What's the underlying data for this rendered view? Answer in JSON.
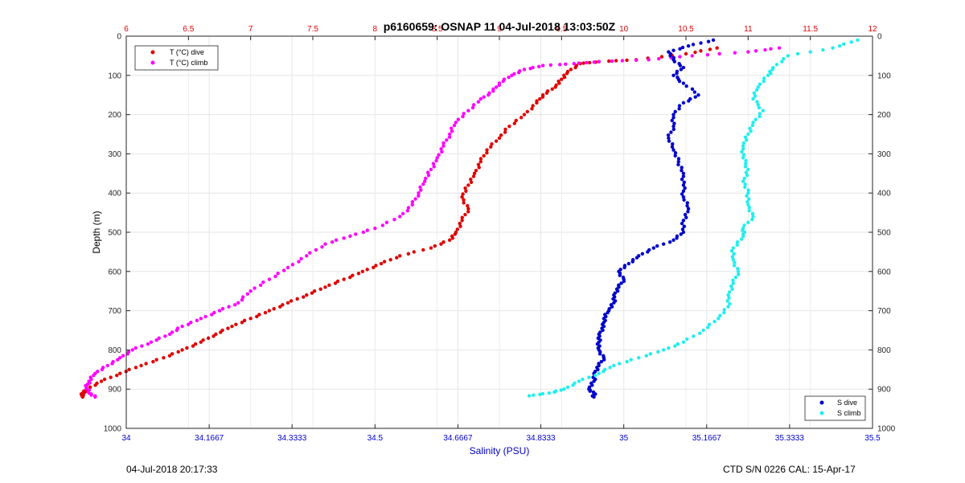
{
  "chart_data": {
    "type": "scatter",
    "title": "p6160659: OSNAP 11 04-Jul-2018 13:03:50Z",
    "ylabel": "Depth (m)",
    "xlabel_bottom": "Salinity (PSU)",
    "xlabel_top": "",
    "y_range": [
      0,
      1000
    ],
    "y_ticks": [
      "0",
      "100",
      "200",
      "300",
      "400",
      "500",
      "600",
      "700",
      "800",
      "900",
      "1000"
    ],
    "salinity_range": [
      34,
      35.5
    ],
    "salinity_ticks": [
      "34",
      "34.1667",
      "34.3333",
      "34.5",
      "34.6667",
      "34.8333",
      "35",
      "35.1667",
      "35.3333",
      "35.5"
    ],
    "temperature_range": [
      6,
      12
    ],
    "temperature_ticks": [
      "6",
      "6.5",
      "7",
      "7.5",
      "8",
      "8.5",
      "9",
      "9.5",
      "10",
      "10.5",
      "11",
      "11.5",
      "12"
    ],
    "grid": true,
    "legend_top_left": [
      "T (°C) dive",
      "T (°C) climb"
    ],
    "legend_bottom_right": [
      "S dive",
      "S climb"
    ],
    "colors": {
      "t_dive": "#e00000",
      "t_climb": "#ff00ff",
      "s_dive": "#0000cc",
      "s_climb": "#22eeee",
      "temp_axis": "#e00000",
      "sal_axis": "#0000cc"
    },
    "series": [
      {
        "name": "T (°C) dive",
        "axis": "temperature",
        "points": [
          [
            10.75,
            30
          ],
          [
            10.5,
            45
          ],
          [
            10.1,
            60
          ],
          [
            9.8,
            65
          ],
          [
            9.65,
            70
          ],
          [
            9.55,
            90
          ],
          [
            9.5,
            110
          ],
          [
            9.45,
            130
          ],
          [
            9.35,
            150
          ],
          [
            9.3,
            170
          ],
          [
            9.2,
            200
          ],
          [
            9.08,
            230
          ],
          [
            9.0,
            260
          ],
          [
            8.9,
            290
          ],
          [
            8.85,
            320
          ],
          [
            8.8,
            350
          ],
          [
            8.75,
            380
          ],
          [
            8.7,
            410
          ],
          [
            8.75,
            440
          ],
          [
            8.7,
            470
          ],
          [
            8.65,
            500
          ],
          [
            8.6,
            520
          ],
          [
            8.45,
            540
          ],
          [
            8.2,
            560
          ],
          [
            8.05,
            580
          ],
          [
            7.9,
            600
          ],
          [
            7.75,
            620
          ],
          [
            7.6,
            640
          ],
          [
            7.45,
            660
          ],
          [
            7.3,
            680
          ],
          [
            7.15,
            700
          ],
          [
            7.0,
            720
          ],
          [
            6.85,
            740
          ],
          [
            6.72,
            760
          ],
          [
            6.6,
            780
          ],
          [
            6.45,
            800
          ],
          [
            6.3,
            820
          ],
          [
            6.12,
            840
          ],
          [
            5.95,
            860
          ],
          [
            5.8,
            880
          ],
          [
            5.68,
            900
          ],
          [
            5.65,
            910
          ],
          [
            5.65,
            920
          ]
        ]
      },
      {
        "name": "T (°C) climb",
        "axis": "temperature",
        "points": [
          [
            11.25,
            30
          ],
          [
            11.0,
            40
          ],
          [
            10.55,
            50
          ],
          [
            10.2,
            60
          ],
          [
            9.8,
            65
          ],
          [
            9.6,
            70
          ],
          [
            9.35,
            75
          ],
          [
            9.2,
            85
          ],
          [
            9.1,
            100
          ],
          [
            9.0,
            120
          ],
          [
            8.95,
            140
          ],
          [
            8.85,
            160
          ],
          [
            8.75,
            190
          ],
          [
            8.65,
            220
          ],
          [
            8.6,
            250
          ],
          [
            8.55,
            280
          ],
          [
            8.5,
            310
          ],
          [
            8.45,
            340
          ],
          [
            8.4,
            370
          ],
          [
            8.35,
            400
          ],
          [
            8.3,
            430
          ],
          [
            8.2,
            460
          ],
          [
            8.0,
            490
          ],
          [
            7.8,
            510
          ],
          [
            7.6,
            530
          ],
          [
            7.45,
            560
          ],
          [
            7.3,
            590
          ],
          [
            7.15,
            620
          ],
          [
            7.0,
            650
          ],
          [
            6.9,
            680
          ],
          [
            6.75,
            700
          ],
          [
            6.6,
            720
          ],
          [
            6.45,
            740
          ],
          [
            6.35,
            760
          ],
          [
            6.2,
            780
          ],
          [
            6.05,
            800
          ],
          [
            5.95,
            820
          ],
          [
            5.85,
            840
          ],
          [
            5.75,
            860
          ],
          [
            5.7,
            880
          ],
          [
            5.68,
            895
          ],
          [
            5.7,
            910
          ],
          [
            5.75,
            920
          ]
        ]
      },
      {
        "name": "S dive",
        "axis": "salinity",
        "points": [
          [
            35.18,
            10
          ],
          [
            35.13,
            25
          ],
          [
            35.09,
            40
          ],
          [
            35.1,
            60
          ],
          [
            35.12,
            80
          ],
          [
            35.1,
            100
          ],
          [
            35.12,
            120
          ],
          [
            35.15,
            150
          ],
          [
            35.12,
            170
          ],
          [
            35.1,
            200
          ],
          [
            35.1,
            230
          ],
          [
            35.09,
            260
          ],
          [
            35.1,
            290
          ],
          [
            35.11,
            320
          ],
          [
            35.12,
            350
          ],
          [
            35.12,
            380
          ],
          [
            35.12,
            410
          ],
          [
            35.13,
            440
          ],
          [
            35.12,
            470
          ],
          [
            35.12,
            500
          ],
          [
            35.1,
            520
          ],
          [
            35.06,
            540
          ],
          [
            35.03,
            560
          ],
          [
            35.01,
            580
          ],
          [
            34.99,
            600
          ],
          [
            35.0,
            620
          ],
          [
            34.99,
            640
          ],
          [
            34.98,
            660
          ],
          [
            34.98,
            680
          ],
          [
            34.97,
            700
          ],
          [
            34.96,
            720
          ],
          [
            34.96,
            740
          ],
          [
            34.95,
            760
          ],
          [
            34.95,
            780
          ],
          [
            34.95,
            800
          ],
          [
            34.96,
            820
          ],
          [
            34.95,
            840
          ],
          [
            34.94,
            860
          ],
          [
            34.94,
            880
          ],
          [
            34.93,
            900
          ],
          [
            34.94,
            910
          ],
          [
            34.94,
            920
          ]
        ]
      },
      {
        "name": "S climb",
        "axis": "salinity",
        "points": [
          [
            35.47,
            10
          ],
          [
            35.42,
            30
          ],
          [
            35.33,
            50
          ],
          [
            35.3,
            80
          ],
          [
            35.29,
            100
          ],
          [
            35.27,
            130
          ],
          [
            35.26,
            160
          ],
          [
            35.28,
            190
          ],
          [
            35.26,
            220
          ],
          [
            35.25,
            250
          ],
          [
            35.24,
            280
          ],
          [
            35.24,
            310
          ],
          [
            35.25,
            340
          ],
          [
            35.24,
            370
          ],
          [
            35.25,
            400
          ],
          [
            35.25,
            430
          ],
          [
            35.26,
            460
          ],
          [
            35.24,
            490
          ],
          [
            35.24,
            510
          ],
          [
            35.22,
            540
          ],
          [
            35.22,
            570
          ],
          [
            35.23,
            600
          ],
          [
            35.22,
            630
          ],
          [
            35.21,
            660
          ],
          [
            35.21,
            690
          ],
          [
            35.19,
            720
          ],
          [
            35.16,
            750
          ],
          [
            35.12,
            780
          ],
          [
            35.08,
            800
          ],
          [
            35.03,
            820
          ],
          [
            34.98,
            840
          ],
          [
            34.95,
            860
          ],
          [
            34.91,
            880
          ],
          [
            34.88,
            900
          ],
          [
            34.85,
            910
          ],
          [
            34.81,
            917
          ]
        ]
      }
    ]
  },
  "footer": {
    "left": "04-Jul-2018 20:17:33",
    "right": "CTD S/N 0226  CAL: 15-Apr-17"
  }
}
